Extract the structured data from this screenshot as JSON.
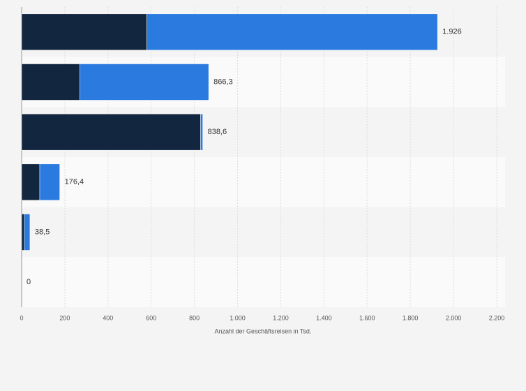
{
  "chart_data": {
    "type": "stacked_barh",
    "categories": [
      null,
      null,
      null,
      null,
      null,
      null
    ],
    "series": [
      {
        "color": "#12263f",
        "values": [
          580,
          270,
          828.6,
          84,
          13,
          0
        ]
      },
      {
        "color": "#2a7ae0",
        "values": [
          1346,
          596.3,
          10,
          92.4,
          25.5,
          0
        ]
      }
    ],
    "value_labels": [
      "1.926",
      "866,3",
      "838,6",
      "176,4",
      "38,5",
      "0"
    ],
    "xlabel": "Anzahl der Geschäftsreisen in Tsd.",
    "xlim": [
      0,
      2200
    ],
    "xticks": [
      0,
      200,
      400,
      600,
      800,
      {
        "value": 1000,
        "label": "1.000"
      },
      {
        "value": 1200,
        "label": "1.200"
      },
      {
        "value": 1400,
        "label": "1.400"
      },
      {
        "value": 1600,
        "label": "1.600"
      },
      {
        "value": 1800,
        "label": "1.800"
      },
      {
        "value": 2000,
        "label": "2.000"
      },
      {
        "value": 2200,
        "label": "2.200"
      }
    ],
    "grid": true
  }
}
